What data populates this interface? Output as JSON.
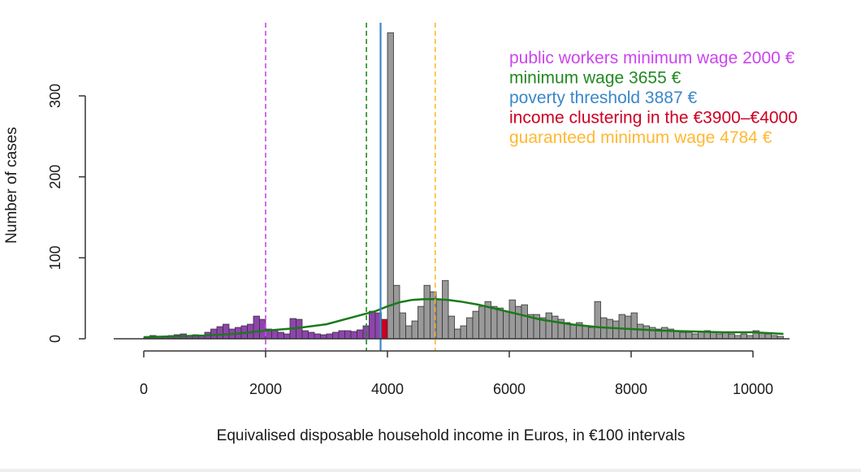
{
  "chart_data": {
    "type": "bar",
    "xlabel": "Equivalised disposable household income in Euros, in €100 intervals",
    "ylabel": "Number of cases",
    "xlim": [
      0,
      10500
    ],
    "ylim": [
      0,
      300
    ],
    "x_ticks": [
      0,
      2000,
      4000,
      6000,
      8000,
      10000
    ],
    "y_ticks": [
      0,
      100,
      200,
      300
    ],
    "bin_width": 100,
    "bins_start": [
      0,
      100,
      200,
      300,
      400,
      500,
      600,
      700,
      800,
      900,
      1000,
      1100,
      1200,
      1300,
      1400,
      1500,
      1600,
      1700,
      1800,
      1900,
      2000,
      2100,
      2200,
      2300,
      2400,
      2500,
      2600,
      2700,
      2800,
      2900,
      3000,
      3100,
      3200,
      3300,
      3400,
      3500,
      3600,
      3700,
      3800,
      3900,
      4000,
      4100,
      4200,
      4300,
      4400,
      4500,
      4600,
      4700,
      4800,
      4900,
      5000,
      5100,
      5200,
      5300,
      5400,
      5500,
      5600,
      5700,
      5800,
      5900,
      6000,
      6100,
      6200,
      6300,
      6400,
      6500,
      6600,
      6700,
      6800,
      6900,
      7000,
      7100,
      7200,
      7300,
      7400,
      7500,
      7600,
      7700,
      7800,
      7900,
      8000,
      8100,
      8200,
      8300,
      8400,
      8500,
      8600,
      8700,
      8800,
      8900,
      9000,
      9100,
      9200,
      9300,
      9400,
      9500,
      9600,
      9700,
      9800,
      9900,
      10000,
      10100,
      10200,
      10300,
      10400
    ],
    "counts": [
      2,
      4,
      3,
      2,
      4,
      5,
      6,
      3,
      5,
      4,
      8,
      12,
      15,
      18,
      12,
      14,
      16,
      18,
      28,
      24,
      12,
      10,
      8,
      6,
      25,
      24,
      10,
      8,
      6,
      5,
      6,
      8,
      10,
      10,
      9,
      11,
      16,
      34,
      32,
      24,
      378,
      66,
      32,
      16,
      22,
      40,
      66,
      58,
      48,
      72,
      28,
      12,
      16,
      26,
      34,
      40,
      46,
      40,
      38,
      34,
      48,
      40,
      42,
      30,
      30,
      26,
      32,
      28,
      24,
      20,
      18,
      20,
      16,
      14,
      46,
      26,
      24,
      22,
      30,
      28,
      32,
      18,
      16,
      14,
      12,
      14,
      12,
      10,
      8,
      8,
      6,
      8,
      10,
      8,
      6,
      8,
      6,
      4,
      6,
      4,
      10,
      8,
      6,
      4,
      3
    ],
    "series": [
      {
        "name": "",
        "bin_colors": {
          "below_3900": "#8e44ad",
          "clustering_3900_4000": "#cc0022",
          "above_4000": "#999999"
        }
      }
    ],
    "density_curve": {
      "color": "#1a7a1a",
      "x": [
        0,
        500,
        1000,
        1500,
        2000,
        2500,
        3000,
        3500,
        3800,
        4000,
        4200,
        4400,
        4600,
        4800,
        5000,
        5200,
        5500,
        6000,
        6500,
        7000,
        7500,
        8000,
        8500,
        9000,
        9500,
        10000,
        10500
      ],
      "y": [
        2,
        3,
        4,
        6,
        10,
        13,
        18,
        28,
        34,
        40,
        45,
        48,
        49,
        49,
        48,
        46,
        42,
        33,
        24,
        18,
        14,
        12,
        10,
        9,
        8,
        8,
        6
      ]
    },
    "reference_lines": [
      {
        "label": "public workers minimum wage 2000 €",
        "x": 2000,
        "color": "#cc44ee",
        "style": "dashed"
      },
      {
        "label": "minimum wage 3655 €",
        "x": 3655,
        "color": "#228822",
        "style": "dashed"
      },
      {
        "label": "poverty threshold 3887 €",
        "x": 3887,
        "color": "#3a87c8",
        "style": "solid"
      },
      {
        "label": "income clustering in the €3900–€4000",
        "x": 3950,
        "color": "#cc0022",
        "style": "bar"
      },
      {
        "label": "guaranteed minimum wage 4784 €",
        "x": 4784,
        "color": "#ffb833",
        "style": "dashed"
      }
    ],
    "legend_placement": "top-right"
  }
}
